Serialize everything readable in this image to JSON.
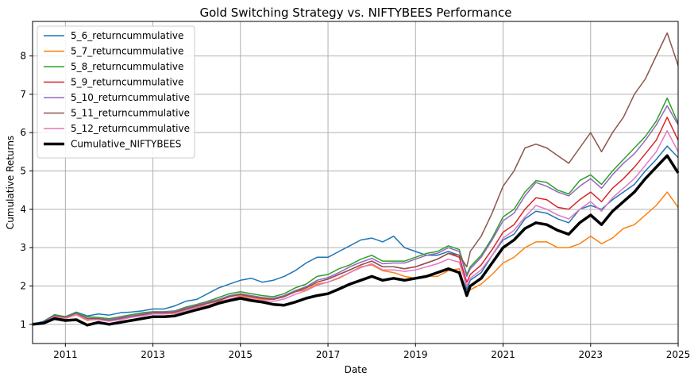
{
  "chart_data": {
    "type": "line",
    "title": "Gold Switching Strategy vs. NIFTYBEES Performance",
    "xlabel": "Date",
    "ylabel": "Cumulative Returns",
    "xlim": [
      2010.25,
      2025.0
    ],
    "ylim": [
      0.5,
      8.9
    ],
    "x_ticks": [
      2011,
      2013,
      2015,
      2017,
      2019,
      2021,
      2023,
      2025
    ],
    "y_ticks": [
      1,
      2,
      3,
      4,
      5,
      6,
      7,
      8
    ],
    "grid": true,
    "legend_position": "upper-left",
    "x": [
      2010.25,
      2010.5,
      2010.75,
      2011.0,
      2011.25,
      2011.5,
      2011.75,
      2012.0,
      2012.25,
      2012.5,
      2012.75,
      2013.0,
      2013.25,
      2013.5,
      2013.75,
      2014.0,
      2014.25,
      2014.5,
      2014.75,
      2015.0,
      2015.25,
      2015.5,
      2015.75,
      2016.0,
      2016.25,
      2016.5,
      2016.75,
      2017.0,
      2017.25,
      2017.5,
      2017.75,
      2018.0,
      2018.25,
      2018.5,
      2018.75,
      2019.0,
      2019.25,
      2019.5,
      2019.75,
      2020.0,
      2020.17,
      2020.25,
      2020.5,
      2020.75,
      2021.0,
      2021.25,
      2021.5,
      2021.75,
      2022.0,
      2022.25,
      2022.5,
      2022.75,
      2023.0,
      2023.25,
      2023.5,
      2023.75,
      2024.0,
      2024.25,
      2024.5,
      2024.75,
      2025.0
    ],
    "series": [
      {
        "name": "5_6_returncummulative",
        "color": "#1f77b4",
        "values": [
          1.0,
          1.08,
          1.25,
          1.2,
          1.32,
          1.22,
          1.27,
          1.24,
          1.3,
          1.32,
          1.35,
          1.4,
          1.4,
          1.48,
          1.6,
          1.65,
          1.8,
          1.95,
          2.05,
          2.15,
          2.2,
          2.1,
          2.15,
          2.25,
          2.4,
          2.6,
          2.75,
          2.75,
          2.9,
          3.05,
          3.2,
          3.25,
          3.15,
          3.3,
          3.0,
          2.9,
          2.8,
          2.8,
          2.9,
          2.8,
          1.9,
          2.15,
          2.35,
          2.8,
          3.2,
          3.35,
          3.75,
          3.95,
          3.9,
          3.75,
          3.65,
          4.0,
          4.1,
          4.0,
          4.25,
          4.45,
          4.65,
          5.0,
          5.3,
          5.65,
          5.35
        ]
      },
      {
        "name": "5_7_returncummulative",
        "color": "#ff7f0e",
        "values": [
          1.0,
          1.05,
          1.2,
          1.15,
          1.25,
          1.1,
          1.15,
          1.12,
          1.18,
          1.2,
          1.25,
          1.3,
          1.3,
          1.3,
          1.38,
          1.45,
          1.55,
          1.6,
          1.65,
          1.75,
          1.7,
          1.65,
          1.65,
          1.75,
          1.85,
          1.9,
          2.05,
          2.1,
          2.2,
          2.35,
          2.5,
          2.55,
          2.4,
          2.35,
          2.25,
          2.2,
          2.25,
          2.25,
          2.4,
          2.45,
          1.8,
          1.9,
          2.05,
          2.3,
          2.6,
          2.75,
          3.0,
          3.15,
          3.15,
          3.0,
          3.0,
          3.1,
          3.3,
          3.1,
          3.25,
          3.5,
          3.6,
          3.85,
          4.1,
          4.45,
          4.05
        ]
      },
      {
        "name": "5_8_returncummulative",
        "color": "#2ca02c",
        "values": [
          1.0,
          1.05,
          1.25,
          1.2,
          1.3,
          1.2,
          1.18,
          1.15,
          1.2,
          1.25,
          1.3,
          1.33,
          1.33,
          1.35,
          1.45,
          1.52,
          1.6,
          1.7,
          1.8,
          1.85,
          1.8,
          1.75,
          1.72,
          1.8,
          1.95,
          2.05,
          2.25,
          2.3,
          2.45,
          2.55,
          2.7,
          2.8,
          2.65,
          2.65,
          2.65,
          2.75,
          2.85,
          2.9,
          3.05,
          2.95,
          2.3,
          2.5,
          2.8,
          3.25,
          3.8,
          4.0,
          4.45,
          4.75,
          4.7,
          4.5,
          4.4,
          4.75,
          4.9,
          4.65,
          5.0,
          5.3,
          5.6,
          5.9,
          6.3,
          6.9,
          6.25
        ]
      },
      {
        "name": "5_9_returncummulative",
        "color": "#d62728",
        "values": [
          1.0,
          1.05,
          1.22,
          1.18,
          1.28,
          1.15,
          1.15,
          1.1,
          1.15,
          1.2,
          1.25,
          1.3,
          1.3,
          1.32,
          1.4,
          1.48,
          1.55,
          1.62,
          1.72,
          1.78,
          1.72,
          1.68,
          1.65,
          1.72,
          1.85,
          1.95,
          2.1,
          2.18,
          2.3,
          2.42,
          2.55,
          2.65,
          2.5,
          2.5,
          2.45,
          2.5,
          2.6,
          2.7,
          2.85,
          2.75,
          2.1,
          2.3,
          2.55,
          2.95,
          3.4,
          3.6,
          4.0,
          4.3,
          4.25,
          4.05,
          4.0,
          4.25,
          4.45,
          4.2,
          4.55,
          4.8,
          5.1,
          5.45,
          5.8,
          6.4,
          5.8
        ]
      },
      {
        "name": "5_10_returncummulative",
        "color": "#9467bd",
        "values": [
          1.0,
          1.05,
          1.22,
          1.18,
          1.28,
          1.16,
          1.15,
          1.12,
          1.18,
          1.22,
          1.27,
          1.32,
          1.32,
          1.34,
          1.42,
          1.5,
          1.58,
          1.65,
          1.75,
          1.8,
          1.75,
          1.7,
          1.68,
          1.75,
          1.88,
          1.98,
          2.15,
          2.22,
          2.35,
          2.5,
          2.62,
          2.72,
          2.58,
          2.6,
          2.6,
          2.7,
          2.8,
          2.85,
          3.0,
          2.9,
          2.25,
          2.45,
          2.75,
          3.2,
          3.7,
          3.9,
          4.35,
          4.7,
          4.6,
          4.45,
          4.35,
          4.6,
          4.8,
          4.55,
          4.9,
          5.2,
          5.45,
          5.8,
          6.2,
          6.7,
          6.2
        ]
      },
      {
        "name": "5_11_returncummulative",
        "color": "#8c564b",
        "values": [
          1.0,
          1.05,
          1.22,
          1.18,
          1.28,
          1.15,
          1.15,
          1.1,
          1.15,
          1.2,
          1.25,
          1.3,
          1.3,
          1.32,
          1.4,
          1.48,
          1.55,
          1.62,
          1.72,
          1.78,
          1.72,
          1.68,
          1.65,
          1.72,
          1.85,
          1.95,
          2.1,
          2.18,
          2.3,
          2.42,
          2.55,
          2.65,
          2.5,
          2.5,
          2.45,
          2.5,
          2.6,
          2.7,
          2.85,
          2.8,
          2.5,
          2.9,
          3.3,
          3.9,
          4.6,
          5.0,
          5.6,
          5.7,
          5.6,
          5.4,
          5.2,
          5.6,
          6.0,
          5.5,
          6.0,
          6.4,
          7.0,
          7.4,
          8.0,
          8.6,
          7.75
        ]
      },
      {
        "name": "5_12_returncummulative",
        "color": "#e377c2",
        "values": [
          1.0,
          1.05,
          1.2,
          1.16,
          1.26,
          1.12,
          1.12,
          1.08,
          1.12,
          1.18,
          1.22,
          1.27,
          1.27,
          1.28,
          1.36,
          1.44,
          1.5,
          1.58,
          1.66,
          1.72,
          1.66,
          1.62,
          1.6,
          1.66,
          1.78,
          1.88,
          2.02,
          2.1,
          2.22,
          2.35,
          2.48,
          2.58,
          2.42,
          2.42,
          2.38,
          2.42,
          2.5,
          2.58,
          2.7,
          2.62,
          2.0,
          2.2,
          2.42,
          2.8,
          3.25,
          3.45,
          3.8,
          4.1,
          4.0,
          3.85,
          3.75,
          4.0,
          4.2,
          3.95,
          4.3,
          4.55,
          4.8,
          5.15,
          5.5,
          6.05,
          5.5
        ]
      },
      {
        "name": "Cumulative_NIFTYBEES",
        "color": "#000000",
        "values": [
          1.0,
          1.03,
          1.15,
          1.1,
          1.12,
          0.98,
          1.05,
          1.0,
          1.05,
          1.1,
          1.15,
          1.2,
          1.2,
          1.22,
          1.3,
          1.38,
          1.45,
          1.55,
          1.62,
          1.68,
          1.62,
          1.58,
          1.52,
          1.5,
          1.58,
          1.68,
          1.75,
          1.8,
          1.92,
          2.05,
          2.15,
          2.25,
          2.15,
          2.2,
          2.15,
          2.2,
          2.25,
          2.35,
          2.45,
          2.35,
          1.75,
          2.0,
          2.2,
          2.6,
          3.0,
          3.2,
          3.5,
          3.65,
          3.6,
          3.45,
          3.35,
          3.65,
          3.85,
          3.6,
          3.95,
          4.2,
          4.45,
          4.8,
          5.1,
          5.4,
          4.95
        ]
      }
    ]
  }
}
